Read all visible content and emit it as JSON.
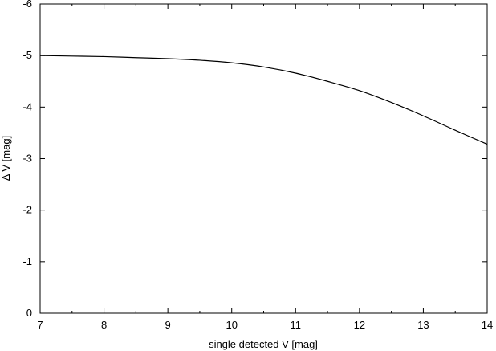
{
  "chart_data": {
    "type": "line",
    "title": "",
    "xlabel": "single detected V [mag]",
    "ylabel": "Δ V [mag]",
    "xlim": [
      7,
      14
    ],
    "ylim": [
      0,
      -6
    ],
    "y_axis_inverted": true,
    "grid": false,
    "legend": "none",
    "x_ticks": [
      7,
      8,
      9,
      10,
      11,
      12,
      13,
      14
    ],
    "y_ticks": [
      0,
      -1,
      -2,
      -3,
      -4,
      -5,
      -6
    ],
    "x_tick_labels": [
      "7",
      "8",
      "9",
      "10",
      "11",
      "12",
      "13",
      "14"
    ],
    "y_tick_labels": [
      "0",
      "-1",
      "-2",
      "-3",
      "-4",
      "-5",
      "-6"
    ],
    "line_color": "#000000",
    "series": [
      {
        "x": [
          7.0,
          7.5,
          8.0,
          8.5,
          9.0,
          9.5,
          10.0,
          10.5,
          11.0,
          11.5,
          12.0,
          12.5,
          13.0,
          13.5,
          14.0
        ],
        "y": [
          -5.0,
          -4.99,
          -4.98,
          -4.96,
          -4.94,
          -4.91,
          -4.86,
          -4.78,
          -4.66,
          -4.5,
          -4.32,
          -4.09,
          -3.83,
          -3.55,
          -3.28
        ]
      }
    ]
  }
}
